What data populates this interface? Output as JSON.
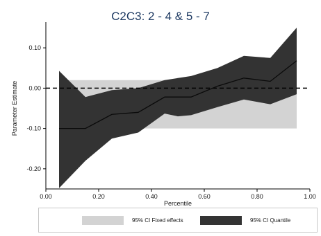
{
  "chart_data": {
    "type": "area",
    "title": "C2C3: 2 - 4 & 5 - 7",
    "xlabel": "Percentile",
    "ylabel": "Parameter Estimate",
    "xlim": [
      0,
      1
    ],
    "ylim": [
      -0.25,
      0.15
    ],
    "x_ticks": [
      {
        "value": 0.0,
        "label": "0.00"
      },
      {
        "value": 0.2,
        "label": "0.20"
      },
      {
        "value": 0.4,
        "label": "0.40"
      },
      {
        "value": 0.6,
        "label": "0.60"
      },
      {
        "value": 0.8,
        "label": "0.80"
      },
      {
        "value": 1.0,
        "label": "1.00"
      }
    ],
    "y_ticks": [
      {
        "value": 0.1,
        "label": "0.10"
      },
      {
        "value": 0.0,
        "label": "0.00"
      },
      {
        "value": -0.1,
        "label": "-0.10"
      },
      {
        "value": -0.2,
        "label": "-0.20"
      }
    ],
    "grid": false,
    "legend_position": "bottom",
    "reference_line": {
      "y": 0.0,
      "style": "dashed"
    },
    "fixed_effects": {
      "name": "95% CI Fixed effects",
      "x_range": [
        0.05,
        0.95
      ],
      "lower": -0.1,
      "upper": 0.02,
      "color": "#d3d3d3"
    },
    "quantile": {
      "name": "95% CI Quantile",
      "color": "#333333",
      "line_color": "#0a0a0a",
      "x": [
        0.05,
        0.15,
        0.25,
        0.35,
        0.45,
        0.5,
        0.55,
        0.65,
        0.75,
        0.85,
        0.95
      ],
      "upper": [
        0.043,
        -0.022,
        -0.005,
        0.0,
        0.02,
        0.025,
        0.03,
        0.05,
        0.08,
        0.075,
        0.15
      ],
      "estimate": [
        -0.1,
        -0.1,
        -0.065,
        -0.06,
        -0.022,
        -0.022,
        -0.022,
        0.005,
        0.025,
        0.017,
        0.068
      ],
      "lower": [
        -0.248,
        -0.18,
        -0.125,
        -0.11,
        -0.063,
        -0.07,
        -0.067,
        -0.047,
        -0.028,
        -0.04,
        -0.015
      ]
    }
  }
}
